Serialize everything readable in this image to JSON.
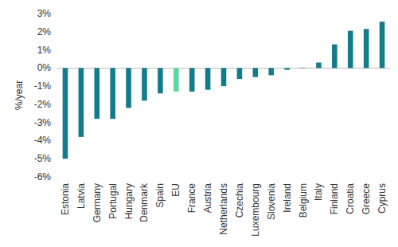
{
  "chart_data": {
    "type": "bar",
    "y_label": "%/year",
    "categories": [
      "Estonia",
      "Latvia",
      "Germany",
      "Portugal",
      "Hungary",
      "Denmark",
      "Spain",
      "EU",
      "France",
      "Austria",
      "Netherlands",
      "Czechia",
      "Luxembourg",
      "Slovenia",
      "Ireland",
      "Belgium",
      "Italy",
      "Finland",
      "Croatia",
      "Greece",
      "Cyprus"
    ],
    "values": [
      -5.0,
      -3.8,
      -2.8,
      -2.8,
      -2.2,
      -1.8,
      -1.4,
      -1.3,
      -1.3,
      -1.2,
      -1.0,
      -0.6,
      -0.5,
      -0.4,
      -0.1,
      0.02,
      0.3,
      1.3,
      2.05,
      2.15,
      2.55
    ],
    "colors": [
      "#127b8c",
      "#127b8c",
      "#127b8c",
      "#127b8c",
      "#127b8c",
      "#127b8c",
      "#127b8c",
      "#5fd6a2",
      "#127b8c",
      "#127b8c",
      "#127b8c",
      "#127b8c",
      "#127b8c",
      "#127b8c",
      "#127b8c",
      "#127b8c",
      "#127b8c",
      "#127b8c",
      "#127b8c",
      "#127b8c",
      "#127b8c"
    ],
    "ylim": [
      -6,
      3
    ],
    "yticks": [
      {
        "value": -6,
        "label": "-6%"
      },
      {
        "value": -5,
        "label": "-5%"
      },
      {
        "value": -4,
        "label": "-4%"
      },
      {
        "value": -3,
        "label": "-3%"
      },
      {
        "value": -2,
        "label": "-2%"
      },
      {
        "value": -1,
        "label": "-1%"
      },
      {
        "value": 0,
        "label": "0%"
      },
      {
        "value": 1,
        "label": "1%"
      },
      {
        "value": 2,
        "label": "2%"
      },
      {
        "value": 3,
        "label": "3%"
      }
    ],
    "grid": false
  }
}
